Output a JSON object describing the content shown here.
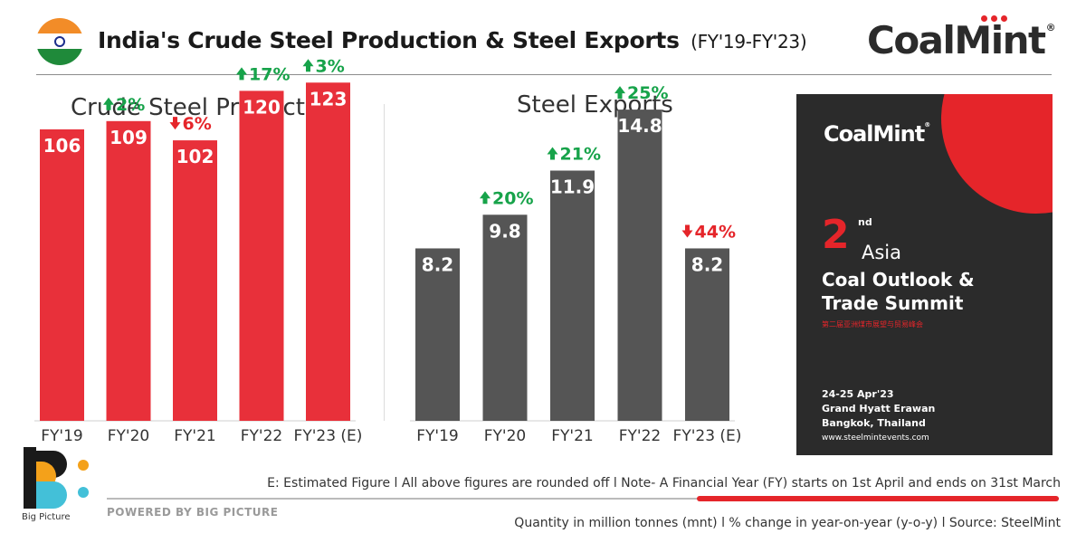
{
  "header": {
    "title": "India's Crude Steel Production & Steel Exports",
    "subtitle": "(FY'19-FY'23)",
    "brand": "CoalMint",
    "brand_mark": "®"
  },
  "chart_data": [
    {
      "type": "bar",
      "title": "Crude Steel Production",
      "categories": [
        "FY'19",
        "FY'20",
        "FY'21",
        "FY'22",
        "FY'23 (E)"
      ],
      "values": [
        106,
        109,
        102,
        120,
        123
      ],
      "value_labels": [
        "106",
        "109",
        "102",
        "120",
        "123"
      ],
      "changes": [
        "",
        "2%",
        "6%",
        "17%",
        "3%"
      ],
      "change_direction": [
        "",
        "up",
        "down",
        "up",
        "up"
      ],
      "ylim": [
        0,
        130
      ],
      "color": "#e8303a",
      "grid": false,
      "xlabel": "",
      "ylabel": ""
    },
    {
      "type": "bar",
      "title": "Steel Exports",
      "categories": [
        "FY'19",
        "FY'20",
        "FY'21",
        "FY'22",
        "FY'23 (E)"
      ],
      "values": [
        8.2,
        9.8,
        11.9,
        14.8,
        8.2
      ],
      "value_labels": [
        "8.2",
        "9.8",
        "11.9",
        "14.8",
        "8.2"
      ],
      "changes": [
        "",
        "20%",
        "21%",
        "25%",
        "44%"
      ],
      "change_direction": [
        "",
        "up",
        "up",
        "up",
        "down"
      ],
      "ylim": [
        0,
        17
      ],
      "color": "#555555",
      "grid": false,
      "xlabel": "",
      "ylabel": ""
    }
  ],
  "colors": {
    "up": "#17a34a",
    "down": "#e5252a",
    "accent": "#e5252a"
  },
  "poster": {
    "brand": "CoalMint",
    "brand_mark": "®",
    "edition_number": "2",
    "edition_suffix": "nd",
    "region": "Asia",
    "event_line1": "Coal Outlook &",
    "event_line2": "Trade Summit",
    "event_chinese": "第二届亚洲煤市展望与贸易峰会",
    "date": "24-25 Apr'23",
    "venue": "Grand Hyatt Erawan",
    "city": "Bangkok, Thailand",
    "url": "www.steelmintevents.com"
  },
  "footer": {
    "logo_caption": "Big Picture",
    "powered_by": "POWERED BY BIG PICTURE",
    "note1": "E: Estimated Figure  l  All above figures are rounded off  l  Note- A Financial Year (FY) starts on 1st April and ends on 31st March",
    "note2": "Quantity in million tonnes (mnt)  l  % change in year-on-year (y-o-y)  l  Source: SteelMint"
  }
}
